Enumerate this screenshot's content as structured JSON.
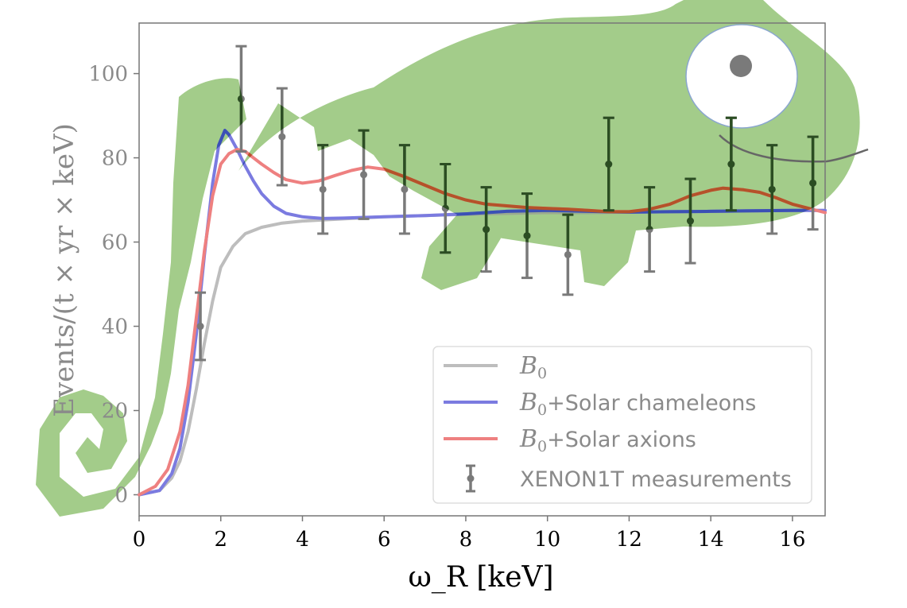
{
  "chart_data": {
    "type": "line",
    "xlabel": "ω_R [keV]",
    "ylabel": "Events/(t × yr × keV)",
    "xlim": [
      0,
      16.8
    ],
    "ylim": [
      -5,
      112
    ],
    "x_ticks": [
      0,
      2,
      4,
      6,
      8,
      10,
      12,
      14,
      16
    ],
    "y_ticks": [
      0,
      20,
      40,
      60,
      80,
      100
    ],
    "grid": false,
    "legend_position": "lower-right",
    "series": [
      {
        "name": "B0",
        "legend_base": "B",
        "legend_sub": "0",
        "legend_suffix": "",
        "color": "#bdbdbd",
        "x": [
          0,
          0.5,
          0.8,
          1.0,
          1.2,
          1.4,
          1.6,
          1.8,
          2.0,
          2.3,
          2.6,
          3.0,
          3.5,
          4.0,
          5,
          6,
          7,
          8,
          9,
          10,
          11,
          12,
          13,
          14,
          15,
          16,
          16.8
        ],
        "y": [
          0,
          1,
          4,
          8,
          15,
          25,
          36,
          46,
          54,
          59,
          62,
          63.5,
          64.5,
          65,
          65.5,
          66,
          66.3,
          66.6,
          66.8,
          67,
          67,
          67.1,
          67.2,
          67.3,
          67.4,
          67.5,
          67.5
        ]
      },
      {
        "name": "B0+Solar chameleons",
        "legend_base": "B",
        "legend_sub": "0",
        "legend_suffix": "+Solar chameleons",
        "color": "#7b7be0",
        "x": [
          0,
          0.5,
          0.8,
          1.0,
          1.2,
          1.4,
          1.6,
          1.8,
          1.95,
          2.1,
          2.2,
          2.4,
          2.6,
          2.8,
          3.0,
          3.3,
          3.6,
          4.0,
          4.5,
          5,
          6,
          7,
          8,
          9,
          10,
          11,
          12,
          13,
          14,
          15,
          16,
          16.8
        ],
        "y": [
          0,
          1,
          5,
          11,
          22,
          38,
          57,
          74,
          83,
          86.5,
          85.5,
          82,
          78,
          74.5,
          71.5,
          68.5,
          66.8,
          66,
          65.6,
          65.7,
          66,
          66.3,
          66.7,
          67.3,
          67.5,
          67.3,
          67.1,
          67.2,
          67.3,
          67.4,
          67.5,
          67.5
        ]
      },
      {
        "name": "B0+Solar axions",
        "legend_base": "B",
        "legend_sub": "0",
        "legend_suffix": "+Solar axions",
        "color": "#ee8080",
        "x": [
          0,
          0.4,
          0.7,
          1.0,
          1.2,
          1.4,
          1.6,
          1.8,
          2.0,
          2.2,
          2.4,
          2.6,
          2.8,
          3.0,
          3.3,
          3.6,
          4.0,
          4.4,
          4.8,
          5.2,
          5.6,
          6.0,
          6.5,
          7.0,
          7.5,
          8.0,
          8.5,
          9.0,
          9.5,
          10,
          10.5,
          11,
          11.5,
          12,
          12.5,
          13,
          13.5,
          14,
          14.3,
          14.8,
          15.2,
          15.6,
          16,
          16.4,
          16.8
        ],
        "y": [
          0,
          2,
          6,
          15,
          26,
          42,
          58,
          71,
          78.5,
          81,
          82,
          81.5,
          80,
          78.5,
          76.5,
          74.8,
          74,
          74.5,
          75.8,
          77,
          77.8,
          77.3,
          75.5,
          73.5,
          71.5,
          70,
          69,
          68.6,
          68.2,
          68,
          67.8,
          67.5,
          67.2,
          67.2,
          67.8,
          69,
          71,
          72.3,
          72.8,
          72.4,
          71.8,
          70.5,
          69,
          68,
          67
        ]
      }
    ],
    "measurements": {
      "name": "XENON1T measurements",
      "color": "#7a7a7a",
      "x": [
        1.5,
        2.5,
        3.5,
        4.5,
        5.5,
        6.5,
        7.5,
        8.5,
        9.5,
        10.5,
        11.5,
        12.5,
        13.5,
        14.5,
        15.5,
        16.5
      ],
      "y": [
        40,
        94,
        85,
        72.5,
        76,
        72.5,
        68,
        63,
        61.5,
        57,
        78.5,
        63,
        65,
        78.5,
        72.5,
        74
      ],
      "yerr": [
        8,
        12.5,
        11.5,
        10.5,
        10.5,
        10.5,
        10.5,
        10,
        10,
        9.5,
        11,
        10,
        10,
        11,
        10.5,
        11
      ]
    }
  },
  "decoration": {
    "icon": "chameleon-icon",
    "body_color": "#a3cc8a",
    "eye_color": "#ffffff",
    "pupil_color": "#7a7a7a",
    "overlay_point_color": "#2b4d22"
  }
}
